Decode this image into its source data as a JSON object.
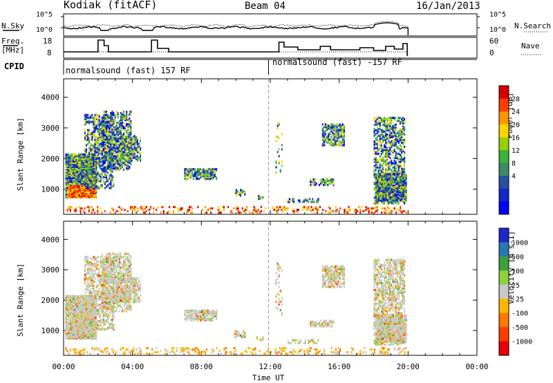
{
  "header": {
    "station": "Kodiak (fitACF)",
    "beam": "Beam 04",
    "date": "16/Jan/2013"
  },
  "noise_panel": {
    "left_label": "N.Sky",
    "right_label": "N.Search",
    "left_ticks": [
      "10^5",
      "10^0"
    ],
    "right_ticks": [
      "10^5",
      "10^0"
    ]
  },
  "freq_panel": {
    "left_label_1": "Freq.",
    "left_label_2": "[MHz]",
    "right_label": "Nave",
    "left_ticks": [
      "18",
      "8"
    ],
    "right_ticks": [
      "60",
      "0"
    ]
  },
  "cpid": {
    "label": "CPID",
    "segments": [
      "normalsound (fast) 157 RF",
      "normalsound (fast) -157 RF"
    ]
  },
  "chart_data": [
    {
      "type": "heatmap",
      "name_hint": "power",
      "ylabel": "Slant Range [km]",
      "yticks": [
        1000,
        2000,
        3000,
        4000
      ],
      "ylim": [
        180,
        4600
      ],
      "xlim": [
        0,
        24
      ],
      "colorbar_label": "Power [dB]",
      "colorbar_ticks": [
        "28",
        "24",
        "20",
        "16",
        "12",
        "8",
        "4"
      ],
      "colors": [
        "#d20000",
        "#ff3c00",
        "#ff9600",
        "#ffd200",
        "#96d200",
        "#3cb43c",
        "#3c8c64",
        "#2850a0",
        "#1428c8",
        "#0000ff"
      ]
    },
    {
      "type": "heatmap",
      "name_hint": "velocity",
      "ylabel": "Slant Range [km]",
      "yticks": [
        1000,
        2000,
        3000,
        4000
      ],
      "ylim": [
        180,
        4600
      ],
      "xlim": [
        0,
        24
      ],
      "colorbar_label": "Velocity [m s-1]",
      "colorbar_ticks": [
        "1000",
        "500",
        "100",
        "25",
        "-25",
        "-100",
        "-500",
        "-1000"
      ],
      "colors": [
        "#1e28c8",
        "#2878b4",
        "#3ca03c",
        "#8cd23c",
        "#c8c8c8",
        "#ffb400",
        "#ff7800",
        "#ff3c00",
        "#e60000"
      ]
    }
  ],
  "time_axis": {
    "tick_labels": [
      "00:00",
      "04:00",
      "08:00",
      "12:00",
      "16:00",
      "20:00",
      "00:00"
    ],
    "xlabel": "Time UT"
  }
}
